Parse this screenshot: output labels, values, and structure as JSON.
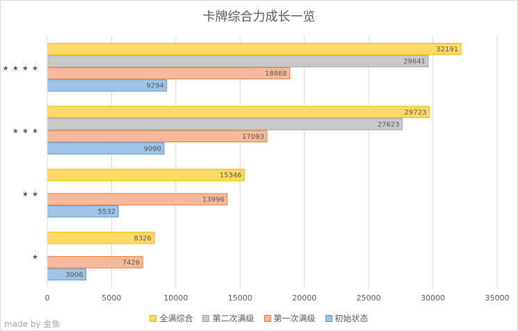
{
  "credit": "made by 金鱼",
  "chart_data": {
    "type": "bar",
    "orientation": "horizontal",
    "title": "卡牌综合力成长一览",
    "categories": [
      "★★★★",
      "★★★",
      "★★",
      "★"
    ],
    "category_labels": [
      "★ ★ ★ ★",
      "★ ★ ★",
      "★ ★",
      "★"
    ],
    "series": [
      {
        "name": "全满综合",
        "color": "#ffd966",
        "stroke": "#f5b800",
        "values": [
          32191,
          29723,
          15346,
          8326
        ]
      },
      {
        "name": "第二次满级",
        "color": "#c9c9c9",
        "stroke": "#a5a5a5",
        "values": [
          29641,
          27623,
          null,
          null
        ]
      },
      {
        "name": "第一次满级",
        "color": "#f8b89a",
        "stroke": "#ed7d31",
        "values": [
          18868,
          17093,
          13996,
          7426
        ]
      },
      {
        "name": "初始状态",
        "color": "#9dc3e6",
        "stroke": "#5b9bd5",
        "values": [
          9294,
          9090,
          5532,
          3006
        ]
      }
    ],
    "xlim": [
      0,
      35000
    ],
    "xticks": [
      0,
      5000,
      10000,
      15000,
      20000,
      25000,
      30000,
      35000
    ],
    "xlabel": "",
    "ylabel": "",
    "grid": true,
    "legend_position": "bottom",
    "data_labels": true
  }
}
